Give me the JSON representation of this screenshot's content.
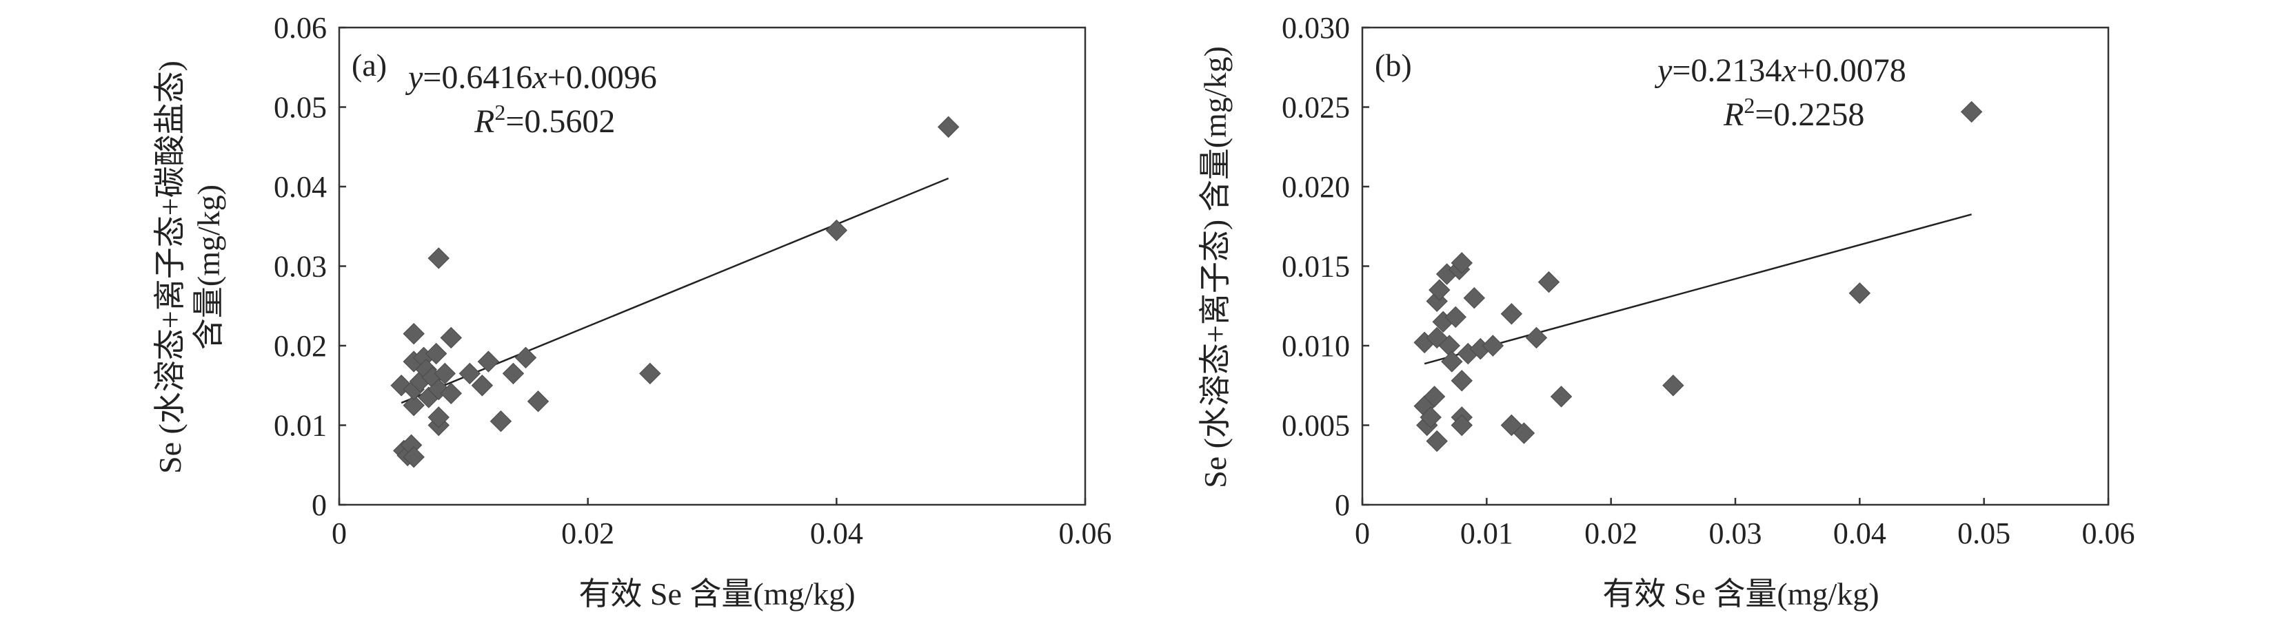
{
  "chart_data": [
    {
      "type": "scatter",
      "panel_label": "(a)",
      "equation": {
        "y_var": "y",
        "eq_text": "=0.6416",
        "x_var": "x",
        "eq_tail": "+0.0096"
      },
      "r2": {
        "r_var": "R",
        "sup": "2",
        "value": "=0.5602"
      },
      "xlabel": "有效 Se 含量(mg/kg)",
      "ylabel_line1": "Se (水溶态+离子态+碳酸盐态)",
      "ylabel_line2": "含量(mg/kg)",
      "xlim": [
        0,
        0.06
      ],
      "ylim": [
        0,
        0.06
      ],
      "x_ticks": [
        "0",
        "0.02",
        "0.04",
        "0.06"
      ],
      "y_ticks": [
        "0",
        "0.01",
        "0.02",
        "0.03",
        "0.04",
        "0.05",
        "0.06"
      ],
      "trendline": {
        "slope": 0.6416,
        "intercept": 0.0096,
        "x_range": [
          0.005,
          0.049
        ]
      },
      "points": [
        {
          "x": 0.005,
          "y": 0.015
        },
        {
          "x": 0.0052,
          "y": 0.0068
        },
        {
          "x": 0.0055,
          "y": 0.0062
        },
        {
          "x": 0.0058,
          "y": 0.0075
        },
        {
          "x": 0.006,
          "y": 0.006
        },
        {
          "x": 0.006,
          "y": 0.0125
        },
        {
          "x": 0.006,
          "y": 0.0145
        },
        {
          "x": 0.006,
          "y": 0.018
        },
        {
          "x": 0.006,
          "y": 0.0215
        },
        {
          "x": 0.0065,
          "y": 0.0155
        },
        {
          "x": 0.0068,
          "y": 0.0185
        },
        {
          "x": 0.007,
          "y": 0.017
        },
        {
          "x": 0.0072,
          "y": 0.0135
        },
        {
          "x": 0.0075,
          "y": 0.016
        },
        {
          "x": 0.0078,
          "y": 0.019
        },
        {
          "x": 0.008,
          "y": 0.0145
        },
        {
          "x": 0.008,
          "y": 0.01
        },
        {
          "x": 0.008,
          "y": 0.011
        },
        {
          "x": 0.008,
          "y": 0.031
        },
        {
          "x": 0.0085,
          "y": 0.0165
        },
        {
          "x": 0.009,
          "y": 0.021
        },
        {
          "x": 0.009,
          "y": 0.014
        },
        {
          "x": 0.0105,
          "y": 0.0165
        },
        {
          "x": 0.0115,
          "y": 0.015
        },
        {
          "x": 0.012,
          "y": 0.018
        },
        {
          "x": 0.013,
          "y": 0.0105
        },
        {
          "x": 0.014,
          "y": 0.0165
        },
        {
          "x": 0.015,
          "y": 0.0185
        },
        {
          "x": 0.016,
          "y": 0.013
        },
        {
          "x": 0.025,
          "y": 0.0165
        },
        {
          "x": 0.04,
          "y": 0.0345
        },
        {
          "x": 0.049,
          "y": 0.0475
        }
      ]
    },
    {
      "type": "scatter",
      "panel_label": "(b)",
      "equation": {
        "y_var": "y",
        "eq_text": "=0.2134",
        "x_var": "x",
        "eq_tail": "+0.0078"
      },
      "r2": {
        "r_var": "R",
        "sup": "2",
        "value": "=0.2258"
      },
      "xlabel": "有效 Se 含量(mg/kg)",
      "ylabel_line1": "Se (水溶态+离子态) 含量(mg/kg)",
      "xlim": [
        0,
        0.06
      ],
      "ylim": [
        0,
        0.03
      ],
      "x_ticks": [
        "0",
        "0.01",
        "0.02",
        "0.03",
        "0.04",
        "0.05",
        "0.06"
      ],
      "y_ticks": [
        "0",
        "0.005",
        "0.010",
        "0.015",
        "0.020",
        "0.025",
        "0.030"
      ],
      "trendline": {
        "slope": 0.2134,
        "intercept": 0.0078,
        "x_range": [
          0.005,
          0.049
        ]
      },
      "points": [
        {
          "x": 0.005,
          "y": 0.0102
        },
        {
          "x": 0.005,
          "y": 0.0062
        },
        {
          "x": 0.0052,
          "y": 0.005
        },
        {
          "x": 0.0055,
          "y": 0.0055
        },
        {
          "x": 0.0058,
          "y": 0.0068
        },
        {
          "x": 0.006,
          "y": 0.004
        },
        {
          "x": 0.006,
          "y": 0.0105
        },
        {
          "x": 0.006,
          "y": 0.0128
        },
        {
          "x": 0.0062,
          "y": 0.0135
        },
        {
          "x": 0.0065,
          "y": 0.0115
        },
        {
          "x": 0.0068,
          "y": 0.0145
        },
        {
          "x": 0.007,
          "y": 0.01
        },
        {
          "x": 0.0072,
          "y": 0.009
        },
        {
          "x": 0.0075,
          "y": 0.0118
        },
        {
          "x": 0.0078,
          "y": 0.0148
        },
        {
          "x": 0.008,
          "y": 0.0152
        },
        {
          "x": 0.008,
          "y": 0.0078
        },
        {
          "x": 0.008,
          "y": 0.0055
        },
        {
          "x": 0.008,
          "y": 0.005
        },
        {
          "x": 0.0085,
          "y": 0.0095
        },
        {
          "x": 0.009,
          "y": 0.013
        },
        {
          "x": 0.0095,
          "y": 0.0098
        },
        {
          "x": 0.0105,
          "y": 0.01
        },
        {
          "x": 0.012,
          "y": 0.012
        },
        {
          "x": 0.012,
          "y": 0.005
        },
        {
          "x": 0.013,
          "y": 0.0045
        },
        {
          "x": 0.014,
          "y": 0.0105
        },
        {
          "x": 0.015,
          "y": 0.014
        },
        {
          "x": 0.016,
          "y": 0.0068
        },
        {
          "x": 0.025,
          "y": 0.0075
        },
        {
          "x": 0.04,
          "y": 0.0133
        },
        {
          "x": 0.049,
          "y": 0.0247
        }
      ]
    }
  ]
}
